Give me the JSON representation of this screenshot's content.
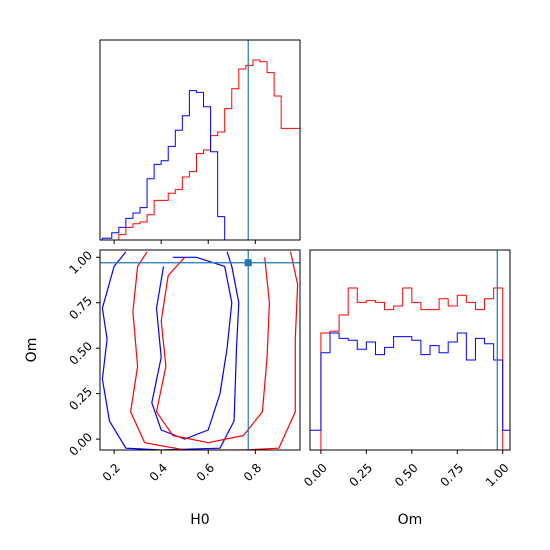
{
  "chart_data": {
    "type": "corner",
    "parameters": [
      "H0",
      "Om"
    ],
    "truth": {
      "H0": 0.77,
      "Om": 0.97
    },
    "colors": {
      "series_a": "#ff0000",
      "series_b": "#0000ff",
      "truth": "#1f77b4"
    },
    "panels": {
      "h0_histogram": {
        "type": "histogram",
        "x_range": [
          0.14,
          0.99
        ],
        "xlabel": "H0",
        "xticks": [
          0.2,
          0.4,
          0.6,
          0.8
        ],
        "xtick_labels": [
          "0.2",
          "0.4",
          "0.6",
          "0.8"
        ],
        "bin_edges": [
          0.15,
          0.19,
          0.22,
          0.25,
          0.28,
          0.31,
          0.34,
          0.37,
          0.4,
          0.43,
          0.46,
          0.49,
          0.52,
          0.55,
          0.58,
          0.61,
          0.64,
          0.67,
          0.7,
          0.73,
          0.76,
          0.79,
          0.82,
          0.85,
          0.88,
          0.91,
          0.94,
          0.99
        ],
        "series": [
          {
            "color": "red",
            "heights": [
              0,
              0,
              0.03,
              0.07,
              0.09,
              0.1,
              0.14,
              0.22,
              0.22,
              0.26,
              0.28,
              0.35,
              0.38,
              0.48,
              0.5,
              0.58,
              0.6,
              0.73,
              0.84,
              0.95,
              0.97,
              1.0,
              0.99,
              0.93,
              0.8,
              0.62,
              0.62
            ]
          },
          {
            "color": "blue",
            "heights": [
              0.01,
              0.04,
              0.07,
              0.12,
              0.15,
              0.18,
              0.34,
              0.42,
              0.44,
              0.52,
              0.61,
              0.69,
              0.83,
              0.82,
              0.74,
              0.49,
              0.13,
              0,
              0,
              0,
              0,
              0,
              0,
              0,
              0,
              0,
              0
            ]
          }
        ]
      },
      "om_histogram": {
        "type": "histogram",
        "x_range": [
          -0.06,
          1.04
        ],
        "xlabel": "Om",
        "xticks": [
          0,
          0.25,
          0.5,
          0.75,
          1.0
        ],
        "xtick_labels": [
          "0.00",
          "0.25",
          "0.50",
          "0.75",
          "1.00"
        ],
        "bin_edges": [
          -0.06,
          0.0,
          0.05,
          0.1,
          0.15,
          0.2,
          0.25,
          0.3,
          0.35,
          0.4,
          0.45,
          0.5,
          0.55,
          0.6,
          0.65,
          0.7,
          0.75,
          0.8,
          0.85,
          0.9,
          0.95,
          1.0,
          1.04
        ],
        "series": [
          {
            "color": "red",
            "heights": [
              0,
              0.65,
              0.66,
              0.75,
              0.9,
              0.82,
              0.83,
              0.82,
              0.78,
              0.8,
              0.9,
              0.82,
              0.78,
              0.78,
              0.84,
              0.8,
              0.86,
              0.82,
              0.78,
              0.84,
              0.9,
              0
            ]
          },
          {
            "color": "blue",
            "heights": [
              0.11,
              0.54,
              0.65,
              0.62,
              0.61,
              0.56,
              0.6,
              0.53,
              0.57,
              0.63,
              0.63,
              0.61,
              0.53,
              0.58,
              0.54,
              0.6,
              0.65,
              0.5,
              0.62,
              0.59,
              0.5,
              0.11
            ]
          }
        ]
      },
      "h0_om_contour": {
        "type": "contour",
        "x_range": [
          0.14,
          0.99
        ],
        "y_range": [
          -0.06,
          1.04
        ],
        "xlabel": "H0",
        "ylabel": "Om",
        "xticks": [
          0.2,
          0.4,
          0.6,
          0.8
        ],
        "xtick_labels": [
          "0.2",
          "0.4",
          "0.6",
          "0.8"
        ],
        "yticks": [
          0,
          0.25,
          0.5,
          0.75,
          1.0
        ],
        "ytick_labels": [
          "0.00",
          "0.25",
          "0.50",
          "0.75",
          "1.00"
        ],
        "contours": [
          {
            "color": "blue",
            "level": "outer",
            "points": [
              [
                0.25,
                1.03
              ],
              [
                0.2,
                0.95
              ],
              [
                0.15,
                0.72
              ],
              [
                0.17,
                0.55
              ],
              [
                0.15,
                0.33
              ],
              [
                0.18,
                0.1
              ],
              [
                0.25,
                -0.05
              ],
              [
                0.4,
                -0.06
              ],
              [
                0.65,
                -0.05
              ],
              [
                0.71,
                0.1
              ],
              [
                0.72,
                0.5
              ],
              [
                0.73,
                0.75
              ],
              [
                0.7,
                0.95
              ],
              [
                0.68,
                1.03
              ]
            ]
          },
          {
            "color": "blue",
            "level": "inner",
            "points": [
              [
                0.41,
                0.95
              ],
              [
                0.38,
                0.72
              ],
              [
                0.4,
                0.45
              ],
              [
                0.36,
                0.2
              ],
              [
                0.4,
                0.05
              ],
              [
                0.5,
                0.0
              ],
              [
                0.6,
                0.05
              ],
              [
                0.65,
                0.25
              ],
              [
                0.68,
                0.5
              ],
              [
                0.7,
                0.75
              ],
              [
                0.67,
                0.95
              ],
              [
                0.55,
                1.0
              ],
              [
                0.45,
                1.0
              ]
            ]
          },
          {
            "color": "red",
            "level": "outer",
            "points": [
              [
                0.34,
                1.03
              ],
              [
                0.3,
                0.95
              ],
              [
                0.28,
                0.7
              ],
              [
                0.3,
                0.4
              ],
              [
                0.27,
                0.15
              ],
              [
                0.33,
                -0.02
              ],
              [
                0.5,
                -0.06
              ],
              [
                0.75,
                -0.06
              ],
              [
                0.9,
                -0.05
              ],
              [
                0.97,
                0.15
              ],
              [
                0.97,
                0.55
              ],
              [
                0.98,
                0.85
              ],
              [
                0.95,
                1.03
              ]
            ]
          },
          {
            "color": "red",
            "level": "inner",
            "points": [
              [
                0.5,
                1.0
              ],
              [
                0.43,
                0.9
              ],
              [
                0.4,
                0.65
              ],
              [
                0.42,
                0.4
              ],
              [
                0.38,
                0.15
              ],
              [
                0.45,
                0.02
              ],
              [
                0.6,
                -0.02
              ],
              [
                0.75,
                0.02
              ],
              [
                0.83,
                0.15
              ],
              [
                0.85,
                0.45
              ],
              [
                0.86,
                0.75
              ],
              [
                0.84,
                1.0
              ]
            ]
          }
        ]
      }
    }
  }
}
